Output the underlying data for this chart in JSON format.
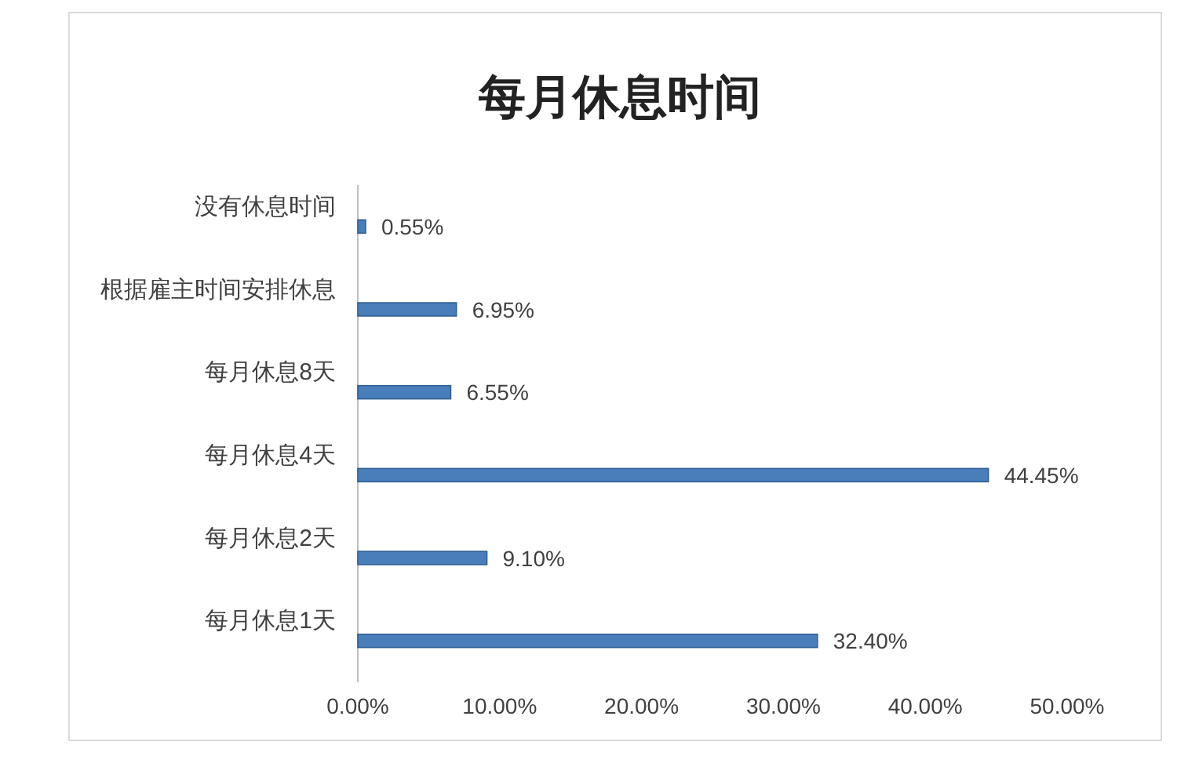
{
  "chart_data": {
    "type": "bar",
    "orientation": "horizontal",
    "title": "每月休息时间",
    "categories": [
      "没有休息时间",
      "根据雇主时间安排休息",
      "每月休息8天",
      "每月休息4天",
      "每月休息2天",
      "每月休息1天"
    ],
    "values": [
      0.55,
      6.95,
      6.55,
      44.45,
      9.1,
      32.4
    ],
    "value_labels": [
      "0.55%",
      "6.95%",
      "6.55%",
      "44.45%",
      "9.10%",
      "32.40%"
    ],
    "color": "#4a7ebb",
    "xlim": [
      0,
      50
    ],
    "xticks": [
      {
        "value": 0,
        "label": "0.00%"
      },
      {
        "value": 10,
        "label": "10.00%"
      },
      {
        "value": 20,
        "label": "20.00%"
      },
      {
        "value": 30,
        "label": "30.00%"
      },
      {
        "value": 40,
        "label": "40.00%"
      },
      {
        "value": 50,
        "label": "50.00%"
      }
    ]
  }
}
